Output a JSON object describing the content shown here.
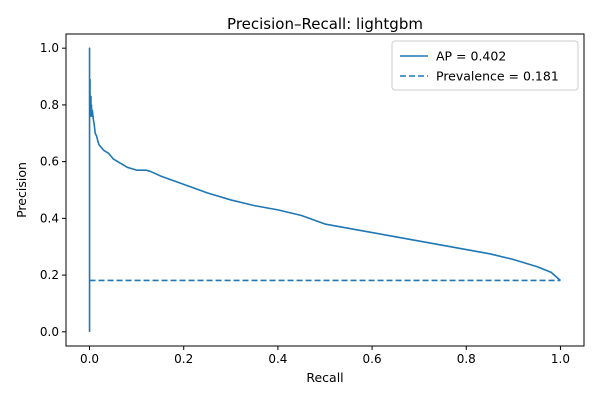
{
  "chart_data": {
    "type": "line",
    "title": "Precision–Recall: lightgbm",
    "xlabel": "Recall",
    "ylabel": "Precision",
    "xlim": [
      -0.05,
      1.05
    ],
    "ylim": [
      -0.05,
      1.05
    ],
    "xticks": [
      0.0,
      0.2,
      0.4,
      0.6,
      0.8,
      1.0
    ],
    "xtick_labels": [
      "0.0",
      "0.2",
      "0.4",
      "0.6",
      "0.8",
      "1.0"
    ],
    "yticks": [
      0.0,
      0.2,
      0.4,
      0.6,
      0.8,
      1.0
    ],
    "ytick_labels": [
      "0.0",
      "0.2",
      "0.4",
      "0.6",
      "0.8",
      "1.0"
    ],
    "grid": false,
    "legend_position": "top-right",
    "series": [
      {
        "name": "AP = 0.402",
        "style": "solid",
        "color": "#1f77b4",
        "x": [
          0.0,
          0.0,
          0.0,
          0.001,
          0.001,
          0.002,
          0.002,
          0.003,
          0.003,
          0.004,
          0.005,
          0.006,
          0.008,
          0.01,
          0.012,
          0.015,
          0.018,
          0.02,
          0.025,
          0.03,
          0.04,
          0.05,
          0.06,
          0.07,
          0.08,
          0.09,
          0.1,
          0.12,
          0.13,
          0.15,
          0.2,
          0.25,
          0.3,
          0.35,
          0.4,
          0.45,
          0.5,
          0.55,
          0.6,
          0.65,
          0.7,
          0.75,
          0.8,
          0.85,
          0.9,
          0.95,
          0.98,
          1.0
        ],
        "y": [
          0.0,
          1.0,
          0.75,
          0.89,
          0.78,
          0.82,
          0.76,
          0.83,
          0.77,
          0.8,
          0.76,
          0.78,
          0.75,
          0.73,
          0.7,
          0.69,
          0.67,
          0.66,
          0.65,
          0.64,
          0.63,
          0.61,
          0.6,
          0.59,
          0.58,
          0.575,
          0.57,
          0.57,
          0.565,
          0.55,
          0.52,
          0.49,
          0.465,
          0.445,
          0.43,
          0.41,
          0.38,
          0.365,
          0.35,
          0.335,
          0.32,
          0.305,
          0.29,
          0.275,
          0.255,
          0.23,
          0.21,
          0.181
        ]
      },
      {
        "name": "Prevalence = 0.181",
        "style": "dashed",
        "color": "#1f77b4",
        "x": [
          0.0,
          1.0
        ],
        "y": [
          0.181,
          0.181
        ]
      }
    ]
  }
}
